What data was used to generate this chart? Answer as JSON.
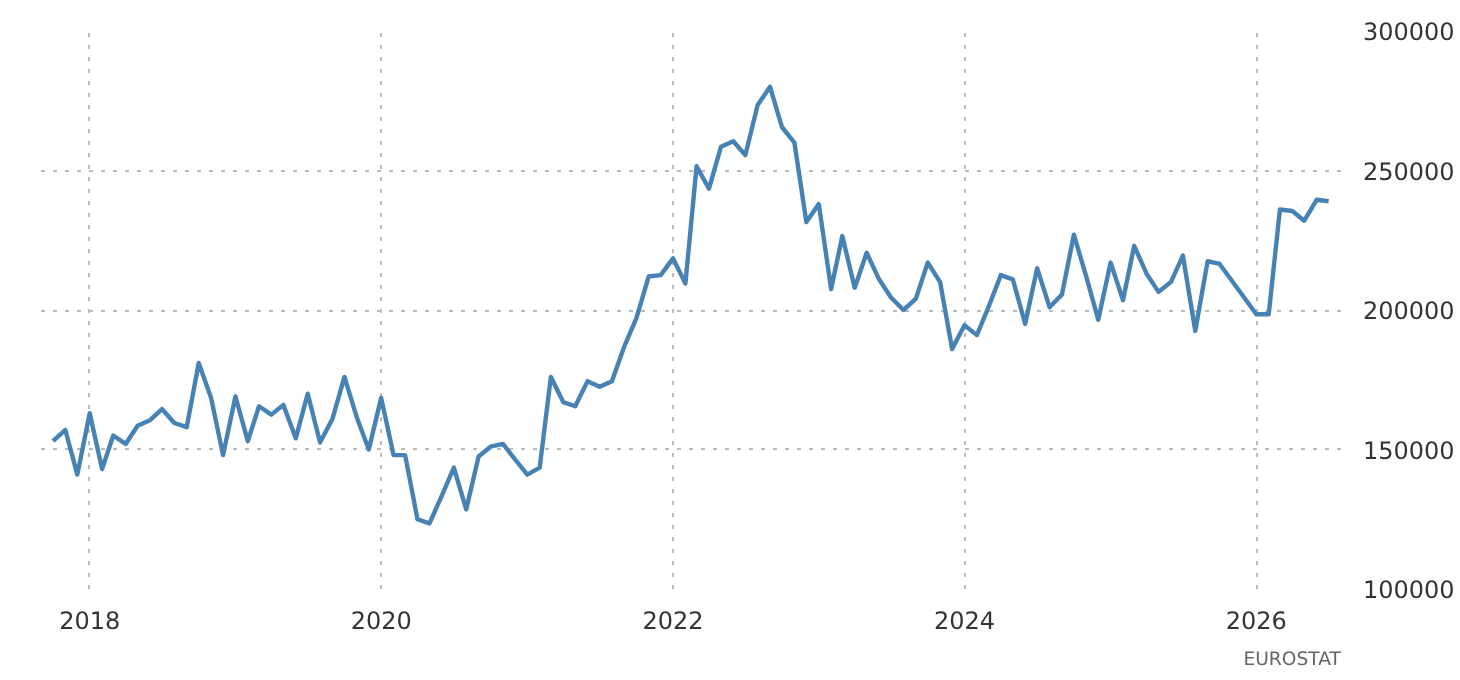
{
  "chart_data": {
    "type": "line",
    "x": [
      "2017-10",
      "2017-11",
      "2017-12",
      "2018-01",
      "2018-02",
      "2018-03",
      "2018-04",
      "2018-05",
      "2018-06",
      "2018-07",
      "2018-08",
      "2018-09",
      "2018-10",
      "2018-11",
      "2018-12",
      "2019-01",
      "2019-02",
      "2019-03",
      "2019-04",
      "2019-05",
      "2019-06",
      "2019-07",
      "2019-08",
      "2019-09",
      "2019-10",
      "2019-11",
      "2019-12",
      "2020-01",
      "2020-02",
      "2020-03",
      "2020-04",
      "2020-05",
      "2020-06",
      "2020-07",
      "2020-08",
      "2020-09",
      "2020-10",
      "2020-11",
      "2020-12",
      "2021-01",
      "2021-02",
      "2021-03",
      "2021-04",
      "2021-05",
      "2021-06",
      "2021-07",
      "2021-08",
      "2021-09",
      "2021-10",
      "2021-11",
      "2021-12",
      "2022-01",
      "2022-02",
      "2022-03",
      "2022-04",
      "2022-05",
      "2022-06",
      "2022-07",
      "2022-08",
      "2022-09",
      "2022-10",
      "2022-11",
      "2022-12",
      "2023-01",
      "2023-02",
      "2023-03",
      "2023-04",
      "2023-05",
      "2023-06",
      "2023-07",
      "2023-08",
      "2023-09",
      "2023-10",
      "2023-11",
      "2023-12",
      "2024-01",
      "2024-02",
      "2024-03",
      "2024-04",
      "2024-05",
      "2024-06",
      "2024-07",
      "2024-08",
      "2024-09",
      "2024-10",
      "2024-11",
      "2024-12",
      "2025-01",
      "2025-02",
      "2025-03",
      "2025-04",
      "2025-05",
      "2025-06",
      "2025-07",
      "2025-08",
      "2025-09",
      "2025-10",
      "2026-01",
      "2026-02",
      "2026-03",
      "2026-04",
      "2026-05",
      "2026-06",
      "2026-07"
    ],
    "series": [
      {
        "color": "#4682b4",
        "values": [
          153000,
          157000,
          141000,
          163000,
          143000,
          155000,
          152000,
          158500,
          160500,
          164500,
          159500,
          158000,
          181000,
          168500,
          148000,
          169000,
          153000,
          165500,
          162500,
          166000,
          154000,
          170000,
          152500,
          161000,
          176000,
          161500,
          150000,
          168500,
          148000,
          148000,
          125000,
          123500,
          133500,
          143500,
          128500,
          147500,
          151000,
          152000,
          146500,
          141000,
          143500,
          176000,
          167000,
          165500,
          174500,
          172500,
          174500,
          187000,
          197000,
          212000,
          212500,
          218500,
          209500,
          251500,
          243500,
          258500,
          260500,
          255500,
          273500,
          280000,
          265500,
          260000,
          231500,
          238000,
          207500,
          226500,
          208000,
          220500,
          211000,
          204500,
          200000,
          204000,
          217000,
          210000,
          186000,
          194500,
          191000,
          201000,
          212500,
          211000,
          195000,
          215000,
          201000,
          205500,
          227000,
          212000,
          196500,
          217000,
          203500,
          223000,
          213000,
          206500,
          210000,
          219500,
          192500,
          217500,
          216500,
          198500,
          198500,
          236000,
          235500,
          232000,
          239500,
          239000
        ]
      }
    ],
    "xlim": [
      "2017-09",
      "2026-08"
    ],
    "ylim": [
      100000,
      300000
    ],
    "xticks": [
      "2018",
      "2020",
      "2022",
      "2024",
      "2026"
    ],
    "yticks": [
      100000,
      150000,
      200000,
      250000,
      300000
    ],
    "grid": true,
    "line_style": "solid",
    "annotations": [
      "EUROSTAT"
    ]
  }
}
